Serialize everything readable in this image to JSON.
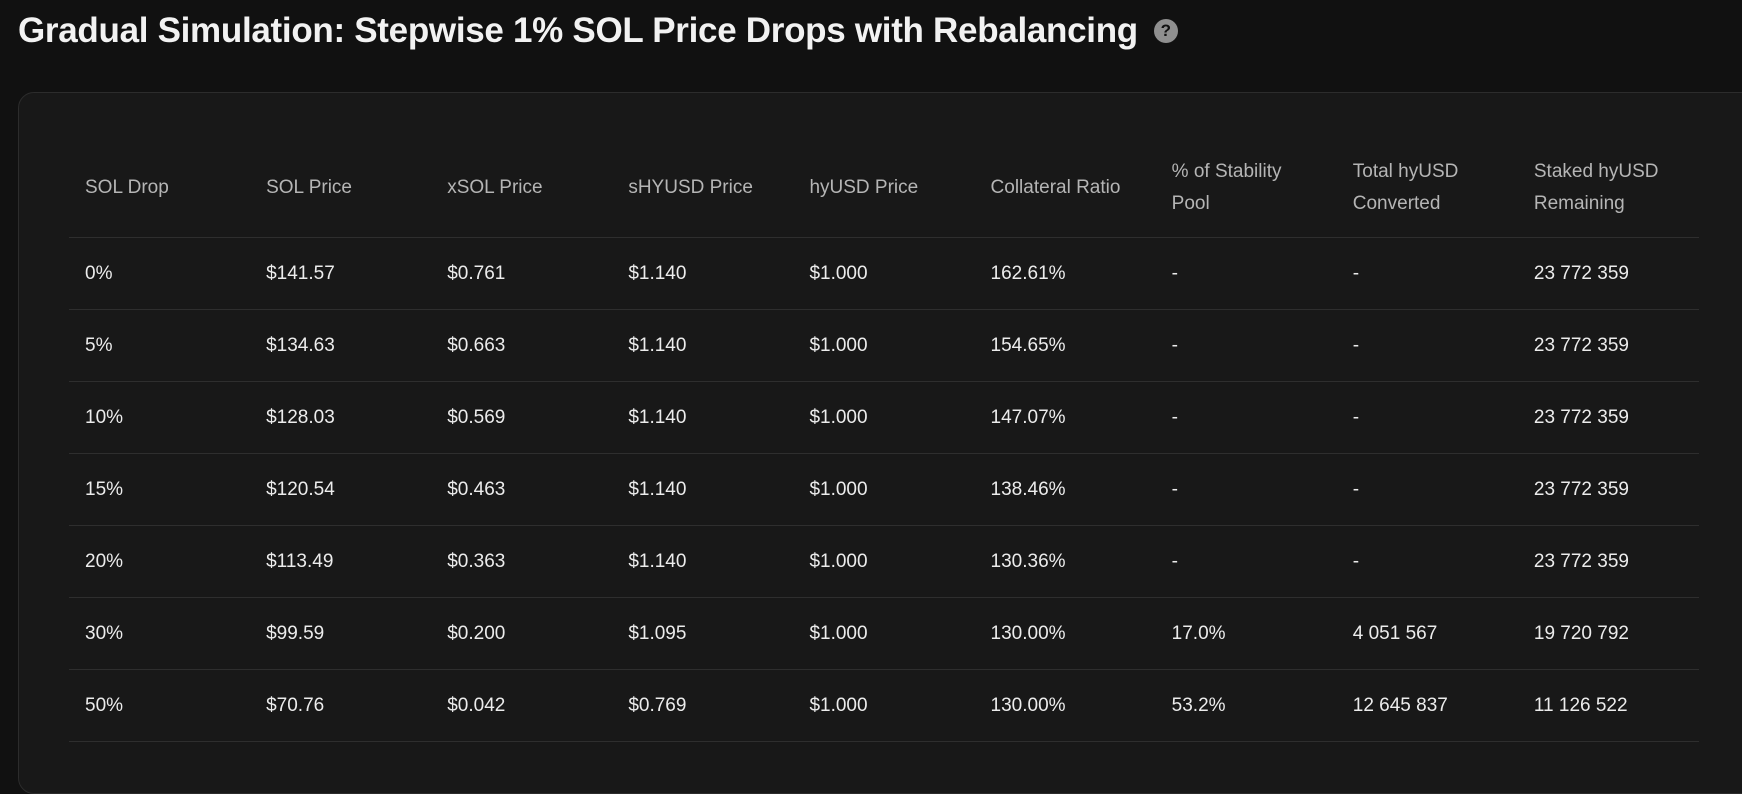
{
  "header": {
    "title": "Gradual Simulation: Stepwise 1% SOL Price Drops with Rebalancing",
    "help_glyph": "?"
  },
  "table": {
    "columns": [
      "SOL Drop",
      "SOL Price",
      "xSOL Price",
      "sHYUSD Price",
      "hyUSD Price",
      "Collateral Ratio",
      "% of Stability Pool",
      "Total hyUSD Converted",
      "Staked hyUSD Remaining"
    ],
    "rows": [
      [
        "0%",
        "$141.57",
        "$0.761",
        "$1.140",
        "$1.000",
        "162.61%",
        "-",
        "-",
        "23 772 359"
      ],
      [
        "5%",
        "$134.63",
        "$0.663",
        "$1.140",
        "$1.000",
        "154.65%",
        "-",
        "-",
        "23 772 359"
      ],
      [
        "10%",
        "$128.03",
        "$0.569",
        "$1.140",
        "$1.000",
        "147.07%",
        "-",
        "-",
        "23 772 359"
      ],
      [
        "15%",
        "$120.54",
        "$0.463",
        "$1.140",
        "$1.000",
        "138.46%",
        "-",
        "-",
        "23 772 359"
      ],
      [
        "20%",
        "$113.49",
        "$0.363",
        "$1.140",
        "$1.000",
        "130.36%",
        "-",
        "-",
        "23 772 359"
      ],
      [
        "30%",
        "$99.59",
        "$0.200",
        "$1.095",
        "$1.000",
        "130.00%",
        "17.0%",
        "4 051 567",
        "19 720 792"
      ],
      [
        "50%",
        "$70.76",
        "$0.042",
        "$0.769",
        "$1.000",
        "130.00%",
        "53.2%",
        "12 645 837",
        "11 126 522"
      ]
    ]
  }
}
